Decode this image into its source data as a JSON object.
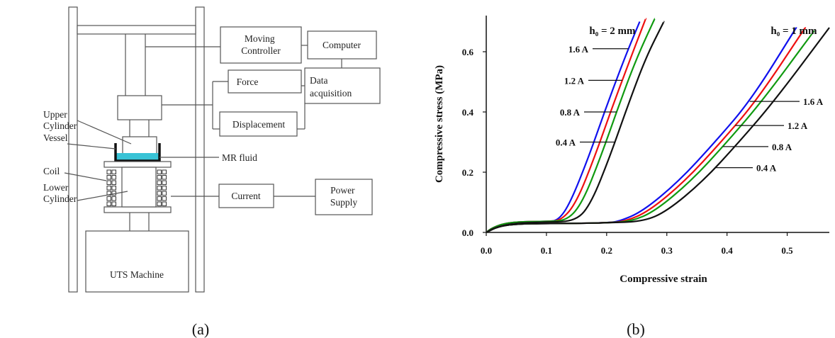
{
  "diagram": {
    "caption": "(a)",
    "labels": {
      "upper_cylinder": [
        "Upper",
        "Cylinder"
      ],
      "vessel": "Vessel",
      "coil": "Coil",
      "lower_cylinder": [
        "Lower",
        "Cylinder"
      ],
      "mr_fluid": "MR fluid",
      "uts_machine": "UTS Machine",
      "moving_controller": [
        "Moving",
        "Controller"
      ],
      "computer": "Computer",
      "force": "Force",
      "displacement": "Displacement",
      "data_acquisition": [
        "Data",
        "acquisition"
      ],
      "current": "Current",
      "power_supply": [
        "Power",
        "Supply"
      ]
    },
    "colors": {
      "fluid": "#39c3d6",
      "line": "#555555"
    }
  },
  "chart_data": {
    "type": "line",
    "caption": "(b)",
    "xlabel": "Compressive strain",
    "ylabel": "Compressive stress (MPa)",
    "xlim": [
      0,
      0.57
    ],
    "ylim": [
      0,
      0.72
    ],
    "xticks": [
      "0.0",
      "0.1",
      "0.2",
      "0.3",
      "0.4",
      "0.5"
    ],
    "yticks": [
      "0.0",
      "0.2",
      "0.4",
      "0.6"
    ],
    "grid": false,
    "groups": [
      {
        "label": "h₀ = 2 mm"
      },
      {
        "label": "h₀ = 1 mm"
      }
    ],
    "series": [
      {
        "name": "1.6 A",
        "group": 0,
        "color": "#1010ee",
        "x": [
          0,
          0.01,
          0.03,
          0.06,
          0.1,
          0.12,
          0.14,
          0.17,
          0.2,
          0.23,
          0.255
        ],
        "y": [
          0,
          0.015,
          0.03,
          0.036,
          0.036,
          0.04,
          0.1,
          0.25,
          0.42,
          0.58,
          0.7
        ]
      },
      {
        "name": "1.2 A",
        "group": 0,
        "color": "#ee1010",
        "x": [
          0,
          0.01,
          0.03,
          0.06,
          0.1,
          0.125,
          0.15,
          0.18,
          0.21,
          0.24,
          0.265
        ],
        "y": [
          0,
          0.015,
          0.03,
          0.036,
          0.036,
          0.04,
          0.1,
          0.25,
          0.42,
          0.58,
          0.71
        ]
      },
      {
        "name": "0.8 A",
        "group": 0,
        "color": "#109a10",
        "x": [
          0,
          0.01,
          0.03,
          0.06,
          0.1,
          0.135,
          0.16,
          0.19,
          0.22,
          0.25,
          0.28
        ],
        "y": [
          0,
          0.015,
          0.03,
          0.036,
          0.036,
          0.04,
          0.1,
          0.25,
          0.42,
          0.58,
          0.71
        ]
      },
      {
        "name": "0.4 A",
        "group": 0,
        "color": "#111111",
        "x": [
          0,
          0.01,
          0.03,
          0.06,
          0.1,
          0.15,
          0.175,
          0.205,
          0.235,
          0.265,
          0.295
        ],
        "y": [
          0,
          0.012,
          0.025,
          0.033,
          0.034,
          0.038,
          0.1,
          0.25,
          0.42,
          0.58,
          0.7
        ]
      },
      {
        "name": "1.6 A",
        "group": 1,
        "color": "#1010ee",
        "x": [
          0,
          0.02,
          0.05,
          0.1,
          0.15,
          0.2,
          0.22,
          0.26,
          0.32,
          0.38,
          0.44,
          0.515
        ],
        "y": [
          0,
          0.02,
          0.028,
          0.03,
          0.03,
          0.032,
          0.036,
          0.07,
          0.17,
          0.3,
          0.44,
          0.68
        ]
      },
      {
        "name": "1.2 A",
        "group": 1,
        "color": "#ee1010",
        "x": [
          0,
          0.02,
          0.05,
          0.1,
          0.15,
          0.2,
          0.23,
          0.27,
          0.33,
          0.39,
          0.45,
          0.53
        ],
        "y": [
          0,
          0.02,
          0.028,
          0.03,
          0.03,
          0.032,
          0.036,
          0.07,
          0.17,
          0.3,
          0.44,
          0.68
        ]
      },
      {
        "name": "0.8 A",
        "group": 1,
        "color": "#109a10",
        "x": [
          0,
          0.02,
          0.05,
          0.1,
          0.15,
          0.2,
          0.24,
          0.28,
          0.34,
          0.4,
          0.46,
          0.545
        ],
        "y": [
          0,
          0.02,
          0.028,
          0.03,
          0.03,
          0.032,
          0.036,
          0.07,
          0.17,
          0.3,
          0.44,
          0.67
        ]
      },
      {
        "name": "0.4 A",
        "group": 1,
        "color": "#111111",
        "x": [
          0,
          0.02,
          0.05,
          0.1,
          0.15,
          0.2,
          0.26,
          0.3,
          0.36,
          0.42,
          0.48,
          0.57
        ],
        "y": [
          0,
          0.02,
          0.028,
          0.03,
          0.03,
          0.032,
          0.036,
          0.07,
          0.17,
          0.3,
          0.44,
          0.68
        ]
      }
    ]
  }
}
